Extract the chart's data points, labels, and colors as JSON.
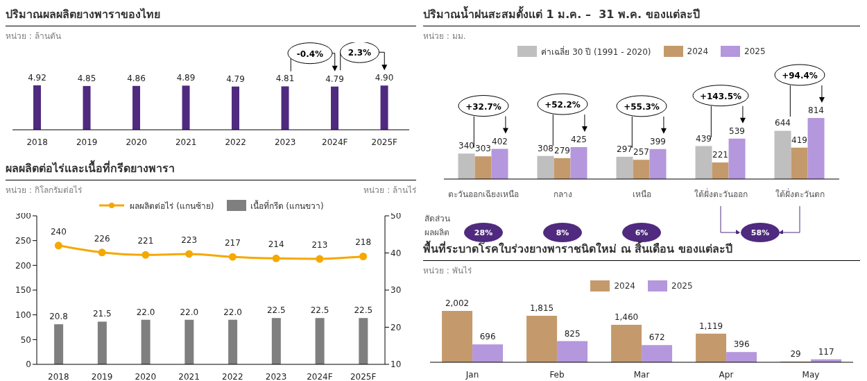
{
  "chart_data": [
    {
      "type": "bar",
      "title": "ปริมาณผลผลิตยางพาราของไทย",
      "subtitle": "หน่วย : ล้านตัน",
      "categories": [
        "2018",
        "2019",
        "2020",
        "2021",
        "2022",
        "2023",
        "2024F",
        "2025F"
      ],
      "values": [
        4.92,
        4.85,
        4.86,
        4.89,
        4.79,
        4.81,
        4.79,
        4.9
      ],
      "value_labels": [
        "4.92",
        "4.85",
        "4.86",
        "4.89",
        "4.79",
        "4.81",
        "4.79",
        "4.90"
      ],
      "color": "#4f2a7f",
      "legend": false,
      "grid": false,
      "annotations": [
        "-0.4%",
        "2.3%"
      ]
    },
    {
      "type": "line",
      "title": "ผลผลิตต่อไร่และเนื้อที่กรีดยางพารา",
      "ylabel": "หน่วย : กิโลกรัมต่อไร่",
      "y2label": "หน่วย : ล้านไร่",
      "categories": [
        "2018",
        "2019",
        "2020",
        "2021",
        "2022",
        "2023",
        "2024F",
        "2025F"
      ],
      "series": [
        {
          "name": "ผลผลิตต่อไร่ (แกนซ้าย)",
          "color": "#f5a800",
          "values": [
            240,
            226,
            221,
            223,
            217,
            214,
            213,
            218
          ],
          "value_labels": [
            "240",
            "226",
            "221",
            "223",
            "217",
            "214",
            "213",
            "218"
          ]
        },
        {
          "name": "เนื้อที่กรีด (แกนขวา)",
          "type": "bar",
          "axis": "y2",
          "color": "#7f7f7f",
          "values": [
            20.8,
            21.5,
            22.0,
            22.0,
            22.0,
            22.5,
            22.5,
            22.5
          ],
          "value_labels": [
            "20.8",
            "21.5",
            "22.0",
            "22.0",
            "22.0",
            "22.5",
            "22.5",
            "22.5"
          ]
        }
      ],
      "ylim": [
        0,
        300
      ],
      "yticks": [
        0,
        50,
        100,
        150,
        200,
        250,
        300
      ],
      "y2lim": [
        10,
        50
      ],
      "y2ticks": [
        10,
        20,
        30,
        40,
        50
      ],
      "marker": "circle",
      "line_style": "solid",
      "legend": "top",
      "grid": false
    },
    {
      "type": "bar",
      "title": "ปริมาณน้ำฝนสะสมตั้งแต่ 1 ม.ค. –  31 พ.ค. ของแต่ละปี",
      "subtitle": "หน่วย : มม.",
      "categories": [
        "ตะวันออกเฉียงเหนือ",
        "กลาง",
        "เหนือ",
        "ใต้ฝั่งตะวันออก",
        "ใต้ฝั่งตะวันตก"
      ],
      "series": [
        {
          "name": "ค่าเฉลี่ย 30 ปี (1991 - 2020)",
          "color": "#bfbfbf",
          "values": [
            340,
            308,
            297,
            439,
            644
          ]
        },
        {
          "name": "2024",
          "color": "#c49a6c",
          "values": [
            303,
            279,
            257,
            221,
            419
          ]
        },
        {
          "name": "2025",
          "color": "#b497dc",
          "values": [
            402,
            425,
            399,
            539,
            814
          ]
        }
      ],
      "data_labels": true,
      "legend": "top",
      "grid": false,
      "annotations": [
        "+32.7%",
        "+52.2%",
        "+55.3%",
        "+143.5%",
        "+94.4%",
        "สัดส่วนผลผลิต",
        "28%",
        "8%",
        "6%",
        "58%"
      ]
    },
    {
      "type": "bar",
      "title": "พื้นที่ระบาดโรคใบร่วงยางพาราชนิดใหม่ ณ สิ้นเดือน ของแต่ละปี",
      "subtitle": "หน่วย : พันไร่",
      "categories": [
        "Jan",
        "Feb",
        "Mar",
        "Apr",
        "May"
      ],
      "series": [
        {
          "name": "2024",
          "color": "#c49a6c",
          "values": [
            2002,
            1815,
            1460,
            1119,
            29
          ],
          "value_labels": [
            "2,002",
            "1,815",
            "1,460",
            "1,119",
            "29"
          ]
        },
        {
          "name": "2025",
          "color": "#b497dc",
          "values": [
            696,
            825,
            672,
            396,
            117
          ],
          "value_labels": [
            "696",
            "825",
            "672",
            "396",
            "117"
          ]
        }
      ],
      "legend": "top",
      "grid": false
    }
  ]
}
